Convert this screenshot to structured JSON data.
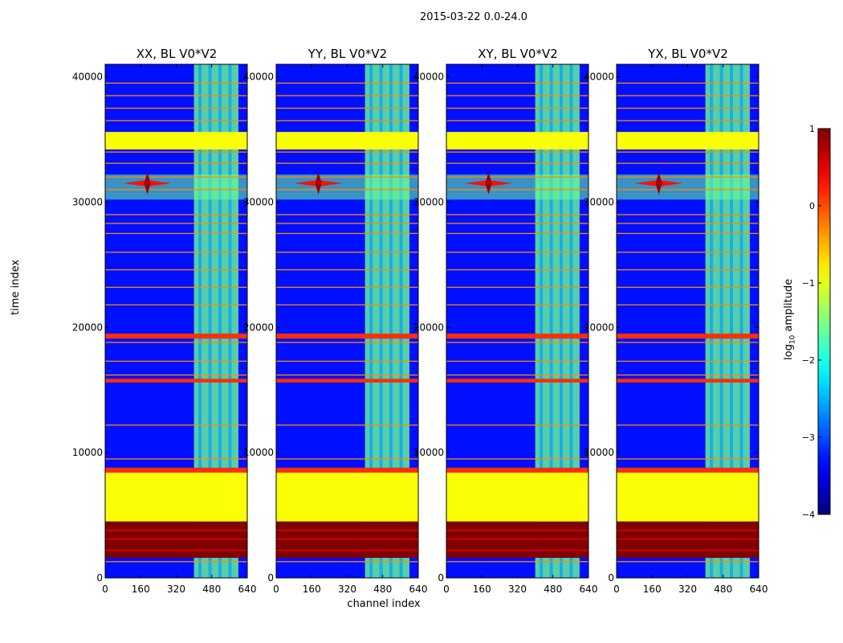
{
  "figure": {
    "suptitle": "2015-03-22 0.0-24.0",
    "xlabel": "channel index",
    "ylabel": "time index",
    "colorbar_label_prefix": "log",
    "colorbar_label_sub": "10",
    "colorbar_label_suffix": " amplitude"
  },
  "chart_data": {
    "type": "heatmap",
    "colormap": "jet",
    "panels": [
      {
        "title": "XX, BL V0*V2"
      },
      {
        "title": "YY, BL V0*V2"
      },
      {
        "title": "XY, BL V0*V2"
      },
      {
        "title": "YX, BL V0*V2"
      }
    ],
    "xlim": [
      0,
      640
    ],
    "ylim": [
      0,
      41000
    ],
    "xticks": [
      0,
      160,
      320,
      480,
      640
    ],
    "yticks": [
      0,
      10000,
      20000,
      30000,
      40000
    ],
    "colorbar": {
      "vmin": -4,
      "vmax": 1,
      "ticks": [
        1,
        0,
        -1,
        -2,
        -3,
        -4
      ],
      "tick_labels": [
        "1",
        "0",
        "−1",
        "−2",
        "−3",
        "−4"
      ]
    },
    "background_level": -3.3,
    "rfi_channel_range": [
      400,
      600
    ],
    "rfi_level": -1.6,
    "flagged_blocks": [
      {
        "t0": 8400,
        "t1": 8800,
        "level": 0.15
      },
      {
        "t0": 4500,
        "t1": 8400,
        "level": -0.9
      },
      {
        "t0": 1600,
        "t1": 4500,
        "level": 1.0
      },
      {
        "t0": 34200,
        "t1": 35600,
        "level": -0.9
      },
      {
        "t0": 19100,
        "t1": 19500,
        "level": 0.15
      },
      {
        "t0": 15600,
        "t1": 15900,
        "level": 0.15
      }
    ],
    "thin_lines": [
      1300,
      9500,
      12200,
      16200,
      17300,
      18800,
      21800,
      23200,
      24600,
      26000,
      27500,
      28300,
      29000,
      31000,
      32000,
      33100,
      34000,
      36500,
      37500,
      38500,
      39500
    ],
    "bright_event": {
      "channel": 190,
      "time": 31500,
      "level": 0.8
    },
    "bright_band": {
      "t0": 30200,
      "t1": 32200,
      "level": -1.6
    }
  }
}
